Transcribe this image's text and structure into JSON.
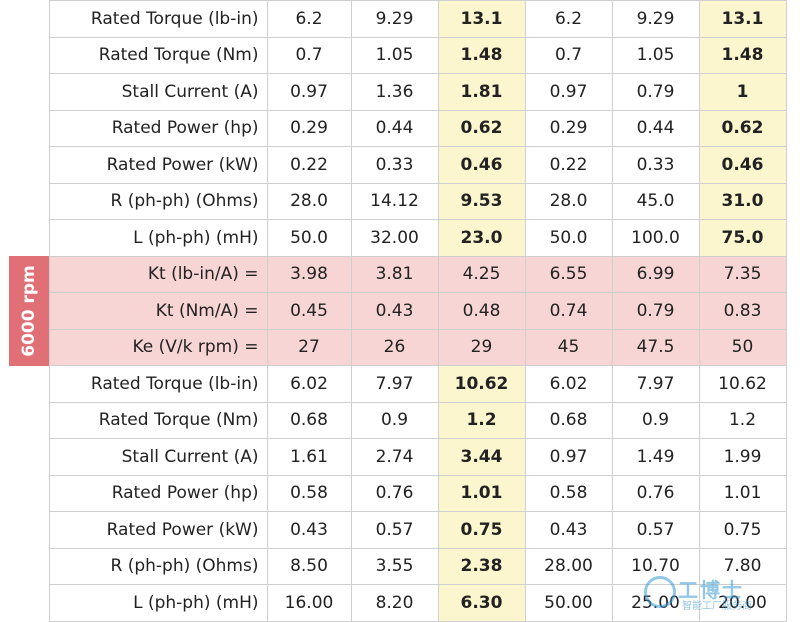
{
  "side_label": "6000 rpm",
  "watermark": {
    "title": "工博士",
    "subtitle": "智能工厂服务商"
  },
  "rows": [
    {
      "label": "Rated Torque (lb-in)",
      "cells": [
        "6.2",
        "9.29",
        "13.1",
        "6.2",
        "9.29",
        "13.1"
      ]
    },
    {
      "label": "Rated Torque (Nm)",
      "cells": [
        "0.7",
        "1.05",
        "1.48",
        "0.7",
        "1.05",
        "1.48"
      ]
    },
    {
      "label": "Stall Current (A)",
      "cells": [
        "0.97",
        "1.36",
        "1.81",
        "0.97",
        "0.79",
        "1"
      ]
    },
    {
      "label": "Rated Power (hp)",
      "cells": [
        "0.29",
        "0.44",
        "0.62",
        "0.29",
        "0.44",
        "0.62"
      ]
    },
    {
      "label": "Rated Power (kW)",
      "cells": [
        "0.22",
        "0.33",
        "0.46",
        "0.22",
        "0.33",
        "0.46"
      ]
    },
    {
      "label": "R (ph-ph) (Ohms)",
      "cells": [
        "28.0",
        "14.12",
        "9.53",
        "28.0",
        "45.0",
        "31.0"
      ]
    },
    {
      "label": "L (ph-ph) (mH)",
      "cells": [
        "50.0",
        "32.00",
        "23.0",
        "50.0",
        "100.0",
        "75.0"
      ]
    },
    {
      "label": "Kt (lb-in/A) =",
      "cells": [
        "3.98",
        "3.81",
        "4.25",
        "6.55",
        "6.99",
        "7.35"
      ]
    },
    {
      "label": "Kt (Nm/A) =",
      "cells": [
        "0.45",
        "0.43",
        "0.48",
        "0.74",
        "0.79",
        "0.83"
      ]
    },
    {
      "label": "Ke (V/k rpm) =",
      "cells": [
        "27",
        "26",
        "29",
        "45",
        "47.5",
        "50"
      ]
    },
    {
      "label": "Rated Torque (lb-in)",
      "cells": [
        "6.02",
        "7.97",
        "10.62",
        "6.02",
        "7.97",
        "10.62"
      ]
    },
    {
      "label": "Rated Torque (Nm)",
      "cells": [
        "0.68",
        "0.9",
        "1.2",
        "0.68",
        "0.9",
        "1.2"
      ]
    },
    {
      "label": "Stall Current (A)",
      "cells": [
        "1.61",
        "2.74",
        "3.44",
        "0.97",
        "1.49",
        "1.99"
      ]
    },
    {
      "label": "Rated Power (hp)",
      "cells": [
        "0.58",
        "0.76",
        "1.01",
        "0.58",
        "0.76",
        "1.01"
      ]
    },
    {
      "label": "Rated Power (kW)",
      "cells": [
        "0.43",
        "0.57",
        "0.75",
        "0.43",
        "0.57",
        "0.75"
      ]
    },
    {
      "label": "R (ph-ph) (Ohms)",
      "cells": [
        "8.50",
        "3.55",
        "2.38",
        "28.00",
        "10.70",
        "7.80"
      ]
    },
    {
      "label": "L (ph-ph) (mH)",
      "cells": [
        "16.00",
        "8.20",
        "6.30",
        "50.00",
        "25.00",
        "20.00"
      ]
    }
  ]
}
